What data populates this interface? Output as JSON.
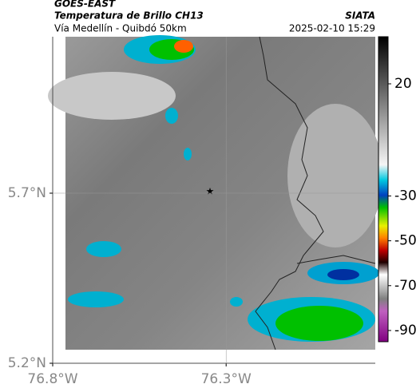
{
  "header": {
    "source": "GOES-EAST",
    "product": "Temperatura de Brillo CH13",
    "org": "SIATA",
    "route": "Vía Medellín - Quibdó 50km",
    "timestamp": "2025-02-10 15:29"
  },
  "map": {
    "xlim": [
      -76.8,
      -75.87
    ],
    "ylim": [
      5.2,
      6.16
    ],
    "xticks": [
      {
        "value": -76.8,
        "label": "76.8°W"
      },
      {
        "value": -76.3,
        "label": "76.3°W"
      }
    ],
    "yticks": [
      {
        "value": 5.7,
        "label": "5.7°N"
      },
      {
        "value": 5.2,
        "label": "5.2°N"
      }
    ]
  },
  "colorbar": {
    "clim": [
      -95,
      41
    ],
    "ticks": [
      20,
      -30,
      -50,
      -70,
      -90
    ]
  }
}
